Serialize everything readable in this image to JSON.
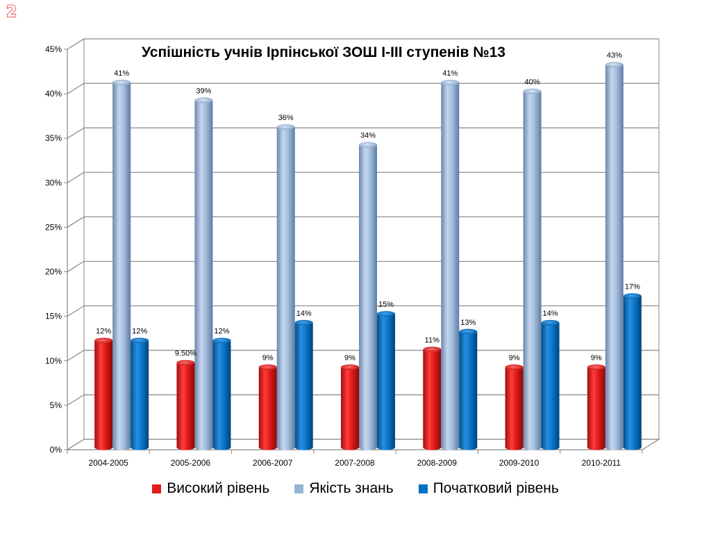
{
  "slide": {
    "number": "2"
  },
  "chart_data": {
    "type": "bar",
    "title": "Успішність учнів Ірпінської ЗОШ І-ІІІ ступенів №13",
    "xlabel": "",
    "ylabel": "",
    "categories": [
      "2004-2005",
      "2005-2006",
      "2006-2007",
      "2007-2008",
      "2008-2009",
      "2009-2010",
      "2010-2011"
    ],
    "ylim": [
      0,
      45
    ],
    "yticks": [
      0,
      5,
      10,
      15,
      20,
      25,
      30,
      35,
      40,
      45
    ],
    "ytick_labels": [
      "0%",
      "5%",
      "10%",
      "15%",
      "20%",
      "25%",
      "30%",
      "35%",
      "40%",
      "45%"
    ],
    "grid": true,
    "legend_position": "bottom",
    "series": [
      {
        "name": "Високий рівень",
        "color": "#e31b1b",
        "values": [
          12,
          9.5,
          9,
          9,
          11,
          9,
          9
        ],
        "labels": [
          "12%",
          "9.50%",
          "9%",
          "9%",
          "11%",
          "9%",
          "9%"
        ]
      },
      {
        "name": "Якість знань",
        "color": "#95b3d7",
        "values": [
          41,
          39,
          36,
          34,
          41,
          40,
          43
        ],
        "labels": [
          "41%",
          "39%",
          "36%",
          "34%",
          "41%",
          "40%",
          "43%"
        ]
      },
      {
        "name": "Початковий рівень",
        "color": "#0070c0",
        "values": [
          12,
          12,
          14,
          15,
          13,
          14,
          17
        ],
        "labels": [
          "12%",
          "12%",
          "14%",
          "15%",
          "13%",
          "14%",
          "17%"
        ]
      }
    ]
  }
}
